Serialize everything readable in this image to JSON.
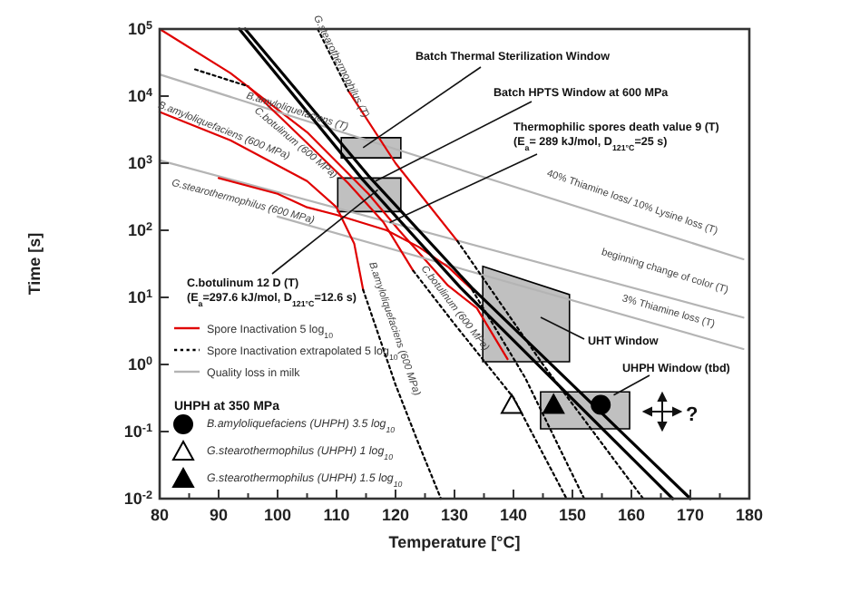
{
  "chart_data": {
    "type": "line",
    "xlabel": "Temperature [°C]",
    "ylabel": "Time [s]",
    "log": "y",
    "legend": "bottom left",
    "legend_title": "UHPH at 350 MPa",
    "xlim": [
      80,
      180
    ],
    "xticks": [
      80,
      {
        "value": 85,
        "label": null
      },
      90,
      {
        "value": 95,
        "label": null
      },
      100,
      {
        "value": 105,
        "label": null
      },
      110,
      {
        "value": 115,
        "label": null
      },
      120,
      {
        "value": 125,
        "label": null
      },
      130,
      {
        "value": 135,
        "label": null
      },
      140,
      {
        "value": 145,
        "label": null
      },
      150,
      {
        "value": 155,
        "label": null
      },
      160,
      {
        "value": 165,
        "label": null
      },
      170,
      {
        "value": 175,
        "label": null
      },
      180
    ],
    "ylim": [
      0.01,
      100000
    ],
    "yticks": [
      {
        "value": 0.01,
        "label": "10$^{-2}$"
      },
      {
        "value": 0.1,
        "label": "10$^{-1}$"
      },
      {
        "value": 1,
        "label": "10$^{0}$"
      },
      {
        "value": 10,
        "label": "10$^{1}$"
      },
      {
        "value": 100,
        "label": "10$^{2}$"
      },
      {
        "value": 1000,
        "label": "10$^{3}$"
      },
      {
        "value": 10000,
        "label": "10$^{4}$"
      },
      {
        "value": 100000,
        "label": "10$^{5}$"
      }
    ],
    "series": [
      {
        "color": "#c0c0c0",
        "x": [
          110.8,
          120.9
        ],
        "values": [
          null,
          null
        ],
        "lower": [
          1200,
          1200
        ],
        "upper": [
          2400,
          2400
        ]
      },
      {
        "color": "#c0c0c0",
        "x": [
          110.2,
          113,
          118,
          120.9
        ],
        "values": [
          null,
          null,
          null,
          null
        ],
        "lower": [
          190,
          190,
          190,
          190
        ],
        "upper": [
          600,
          600,
          600,
          600
        ]
      },
      {
        "color": "#c0c0c0",
        "x": [
          134.8,
          149.5
        ],
        "values": [
          null,
          null
        ],
        "lower": [
          1.1,
          1.1
        ],
        "upper": [
          29,
          11
        ]
      },
      {
        "color": "#c0c0c0",
        "x": [
          144.6,
          159.7
        ],
        "values": [
          null,
          null
        ],
        "lower": [
          0.11,
          0.11
        ],
        "upper": [
          0.39,
          0.39
        ]
      },
      {
        "name": "Spore Inactivation 5 log$_{10}$",
        "color": "#e00000",
        "x": [
          80,
          92,
          105,
          115.4,
          120.6,
          128.9,
          133.8,
          139
        ],
        "values": [
          100000,
          22000,
          2900,
          350,
          100,
          15,
          6.9,
          1.2
        ]
      },
      {
        "name": "Spore Inactivation extrapolated 5 log$_{10}$",
        "color": "#000000",
        "line_style": "dotted",
        "x": [
          86,
          95
        ],
        "values": [
          25000,
          14000
        ]
      },
      {
        "name": "Quality loss in milk",
        "color": "#b4b4b4",
        "x": [
          80,
          179
        ],
        "values": [
          21000,
          37
        ]
      },
      {
        "color": "#b4b4b4",
        "x": [
          80,
          179
        ],
        "values": [
          1100,
          5
        ]
      },
      {
        "color": "#b4b4b4",
        "x": [
          100,
          179
        ],
        "values": [
          160,
          1.7
        ]
      },
      {
        "color": "#e00000",
        "x": [
          95,
          105,
          112,
          118,
          123
        ],
        "values": [
          14000,
          2000,
          500,
          130,
          25
        ]
      },
      {
        "color": "#000000",
        "line_style": "dotted",
        "x": [
          123,
          130,
          140,
          149
        ],
        "values": [
          25,
          4,
          0.32,
          0.01
        ]
      },
      {
        "color": "#e00000",
        "x": [
          80,
          92,
          105,
          110,
          113,
          114.5
        ],
        "values": [
          5800,
          2200,
          540,
          220,
          63,
          13
        ]
      },
      {
        "color": "#000000",
        "line_style": "dotted",
        "x": [
          114.5,
          120,
          124,
          127.7
        ],
        "values": [
          13,
          0.5,
          0.063,
          0.01
        ]
      },
      {
        "color": "#e00000",
        "x": [
          90,
          100,
          105,
          110,
          118.5,
          124,
          129,
          133
        ],
        "values": [
          600,
          350,
          220,
          170,
          100,
          56,
          28,
          13
        ]
      },
      {
        "color": "#000000",
        "line_style": "dotted",
        "x": [
          133,
          142,
          152
        ],
        "values": [
          13,
          0.63,
          0.01
        ]
      },
      {
        "color": "#e00000",
        "x": [
          112,
          120,
          130.5
        ],
        "values": [
          12000,
          1000,
          69
        ]
      },
      {
        "color": "#000000",
        "line_style": "dotted",
        "x": [
          106.8,
          112
        ],
        "values": [
          100000,
          12000
        ]
      },
      {
        "color": "#000000",
        "line_style": "dotted",
        "x": [
          130.5,
          145,
          162
        ],
        "values": [
          69,
          1,
          0.01
        ]
      },
      {
        "color": "#000000",
        "x": [
          94.5,
          115.4,
          132.9,
          170
        ],
        "values": [
          100000,
          650,
          14,
          0.01
        ]
      },
      {
        "color": "#000000",
        "x": [
          93.5,
          114.5,
          131,
          167
        ],
        "values": [
          100000,
          560,
          14,
          0.01
        ]
      },
      {
        "type": "scatter",
        "name": "B.amyloliquefaciens (UHPH) 3.5 log$_{10}$",
        "marker": "circle",
        "color": "#000000",
        "x": [
          154.8
        ],
        "values": [
          0.25
        ]
      },
      {
        "type": "scatter",
        "name": "G.stearothermophilus (UHPH) 1 log$_{10}$",
        "marker": "triangle",
        "color": "#ffffff",
        "x": [
          139.7
        ],
        "values": [
          0.25
        ]
      },
      {
        "type": "scatter",
        "name": "G.stearothermophilus (UHPH) 1.5 log$_{10}$",
        "marker": "triangle",
        "color": "#000000",
        "x": [
          146.8
        ],
        "values": [
          0.25
        ]
      }
    ],
    "annotations": [
      {
        "text": "G.stearothermophilus (T)",
        "x": 109.8,
        "y": 25000
      },
      {
        "text": "B.amyloliquefaciens (T)",
        "x": 103,
        "y": 4800
      },
      "C.botulinum (600 MPa)",
      {
        "text": "B.amyloliquefaciens (600 MPa)",
        "x": 90.5,
        "y": 2500
      },
      {
        "text": "G.stearothermophilus (600 MPa)",
        "x": 94.5,
        "y": 350
      },
      {
        "text": "B.amyloliquefaciens (600 MPa)",
        "x": 118.5,
        "y": 3.1
      },
      {
        "text": "C.botulinum (600 MPa)",
        "x": 129,
        "y": 5.8
      },
      "40% Thiamine loss/ 10% Lysine loss (T)",
      "beginning change of color (T)",
      {
        "text": "3% Thiamine loss (T)",
        "x": 166,
        "y": 5
      },
      {
        "text": "Batch Thermal Sterilization Window",
        "x": 114.5,
        "y": 1700
      },
      {
        "text": "Batch HPTS  Window at 600 MPa",
        "x": 116.6,
        "y": 540
      },
      {
        "text": "Thermophilic spores death value 9 (T)\n(E$_{a}$= 289 kJ/mol, D$_{121°C}$=25 s)",
        "x": 119,
        "y": 130
      },
      {
        "text": "C.botulinum 12 D (T)\n(E$_{a}$=297.6 kJ/mol, D$_{121°C}$=12.6 s)",
        "x": 117,
        "y": 400
      },
      "UHT Window",
      {
        "text": "UHPH Window (tbd)",
        "x": 157,
        "y": 0.35
      },
      "?"
    ]
  }
}
